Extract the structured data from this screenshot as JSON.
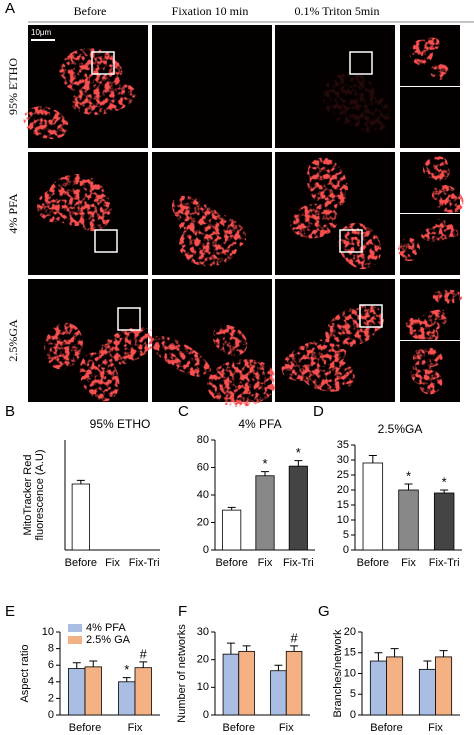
{
  "panel_a": {
    "letter": "A",
    "columns": [
      "Before",
      "Fixation 10 min",
      "0.1% Triton 5min"
    ],
    "rows": [
      "95% ETHO",
      "4% PFA",
      "2.5%GA"
    ],
    "scale_bar": "10μm"
  },
  "chart_data": [
    {
      "type": "bar",
      "letter": "B",
      "title": "95% ETHO",
      "ylabel": [
        "MitoTracker Red",
        "fluorescence (A.U)"
      ],
      "categories": [
        "Before",
        "Fix",
        "Fix-Tri"
      ],
      "values": [
        27,
        0,
        0
      ],
      "errors": [
        1.5,
        0,
        0
      ],
      "colors": [
        "#ffffff",
        "#888888",
        "#444444"
      ],
      "marks": [
        null,
        null,
        null
      ],
      "ylim": [
        0,
        45
      ]
    },
    {
      "type": "bar",
      "letter": "C",
      "title": "4% PFA",
      "categories": [
        "Before",
        "Fix",
        "Fix-Tri"
      ],
      "values": [
        29,
        54,
        61
      ],
      "errors": [
        2,
        3,
        4
      ],
      "colors": [
        "#ffffff",
        "#888888",
        "#444444"
      ],
      "marks": [
        null,
        "*",
        "*"
      ],
      "ylim": [
        0,
        80
      ],
      "yticks": [
        0,
        20,
        40,
        60,
        80
      ]
    },
    {
      "type": "bar",
      "letter": "D",
      "title": "2.5%GA",
      "categories": [
        "Before",
        "Fix",
        "Fix-Tri"
      ],
      "values": [
        29,
        20,
        19
      ],
      "errors": [
        2.5,
        2,
        1
      ],
      "colors": [
        "#ffffff",
        "#888888",
        "#444444"
      ],
      "marks": [
        null,
        "*",
        "*"
      ],
      "ylim": [
        0,
        35
      ],
      "yticks": [
        0,
        5,
        10,
        15,
        20,
        25,
        30,
        35
      ]
    },
    {
      "type": "grouped",
      "letter": "E",
      "ylabel": [
        "Aspect ratio"
      ],
      "categories": [
        "Before",
        "Fix"
      ],
      "legend": "top-left",
      "series": [
        {
          "name": "4% PFA",
          "color": "#aabde2",
          "values": [
            5.6,
            4.0
          ],
          "errors": [
            0.7,
            0.5
          ],
          "marks": [
            null,
            "*"
          ]
        },
        {
          "name": "2.5% GA",
          "color": "#f4b183",
          "values": [
            5.8,
            5.7
          ],
          "errors": [
            0.7,
            0.7
          ],
          "marks": [
            null,
            "#"
          ]
        }
      ],
      "ylim": [
        0,
        10
      ],
      "yticks": [
        0,
        2,
        4,
        6,
        8,
        10
      ]
    },
    {
      "type": "grouped",
      "letter": "F",
      "ylabel": [
        "Number of networks"
      ],
      "categories": [
        "Before",
        "Fix"
      ],
      "series": [
        {
          "color": "#aabde2",
          "values": [
            22,
            16
          ],
          "errors": [
            4,
            2
          ],
          "marks": [
            null,
            null
          ]
        },
        {
          "color": "#f4b183",
          "values": [
            23,
            23
          ],
          "errors": [
            2,
            2
          ],
          "marks": [
            null,
            "#"
          ]
        }
      ],
      "ylim": [
        0,
        30
      ],
      "yticks": [
        0,
        10,
        20,
        30
      ]
    },
    {
      "type": "grouped",
      "letter": "G",
      "ylabel": [
        "Branches/network"
      ],
      "categories": [
        "Before",
        "Fix"
      ],
      "series": [
        {
          "color": "#aabde2",
          "values": [
            13,
            11
          ],
          "errors": [
            2,
            2
          ],
          "marks": [
            null,
            null
          ]
        },
        {
          "color": "#f4b183",
          "values": [
            14,
            14
          ],
          "errors": [
            2,
            1.5
          ],
          "marks": [
            null,
            null
          ]
        }
      ],
      "ylim": [
        0,
        20
      ],
      "yticks": [
        0,
        5,
        10,
        15,
        20
      ]
    }
  ]
}
